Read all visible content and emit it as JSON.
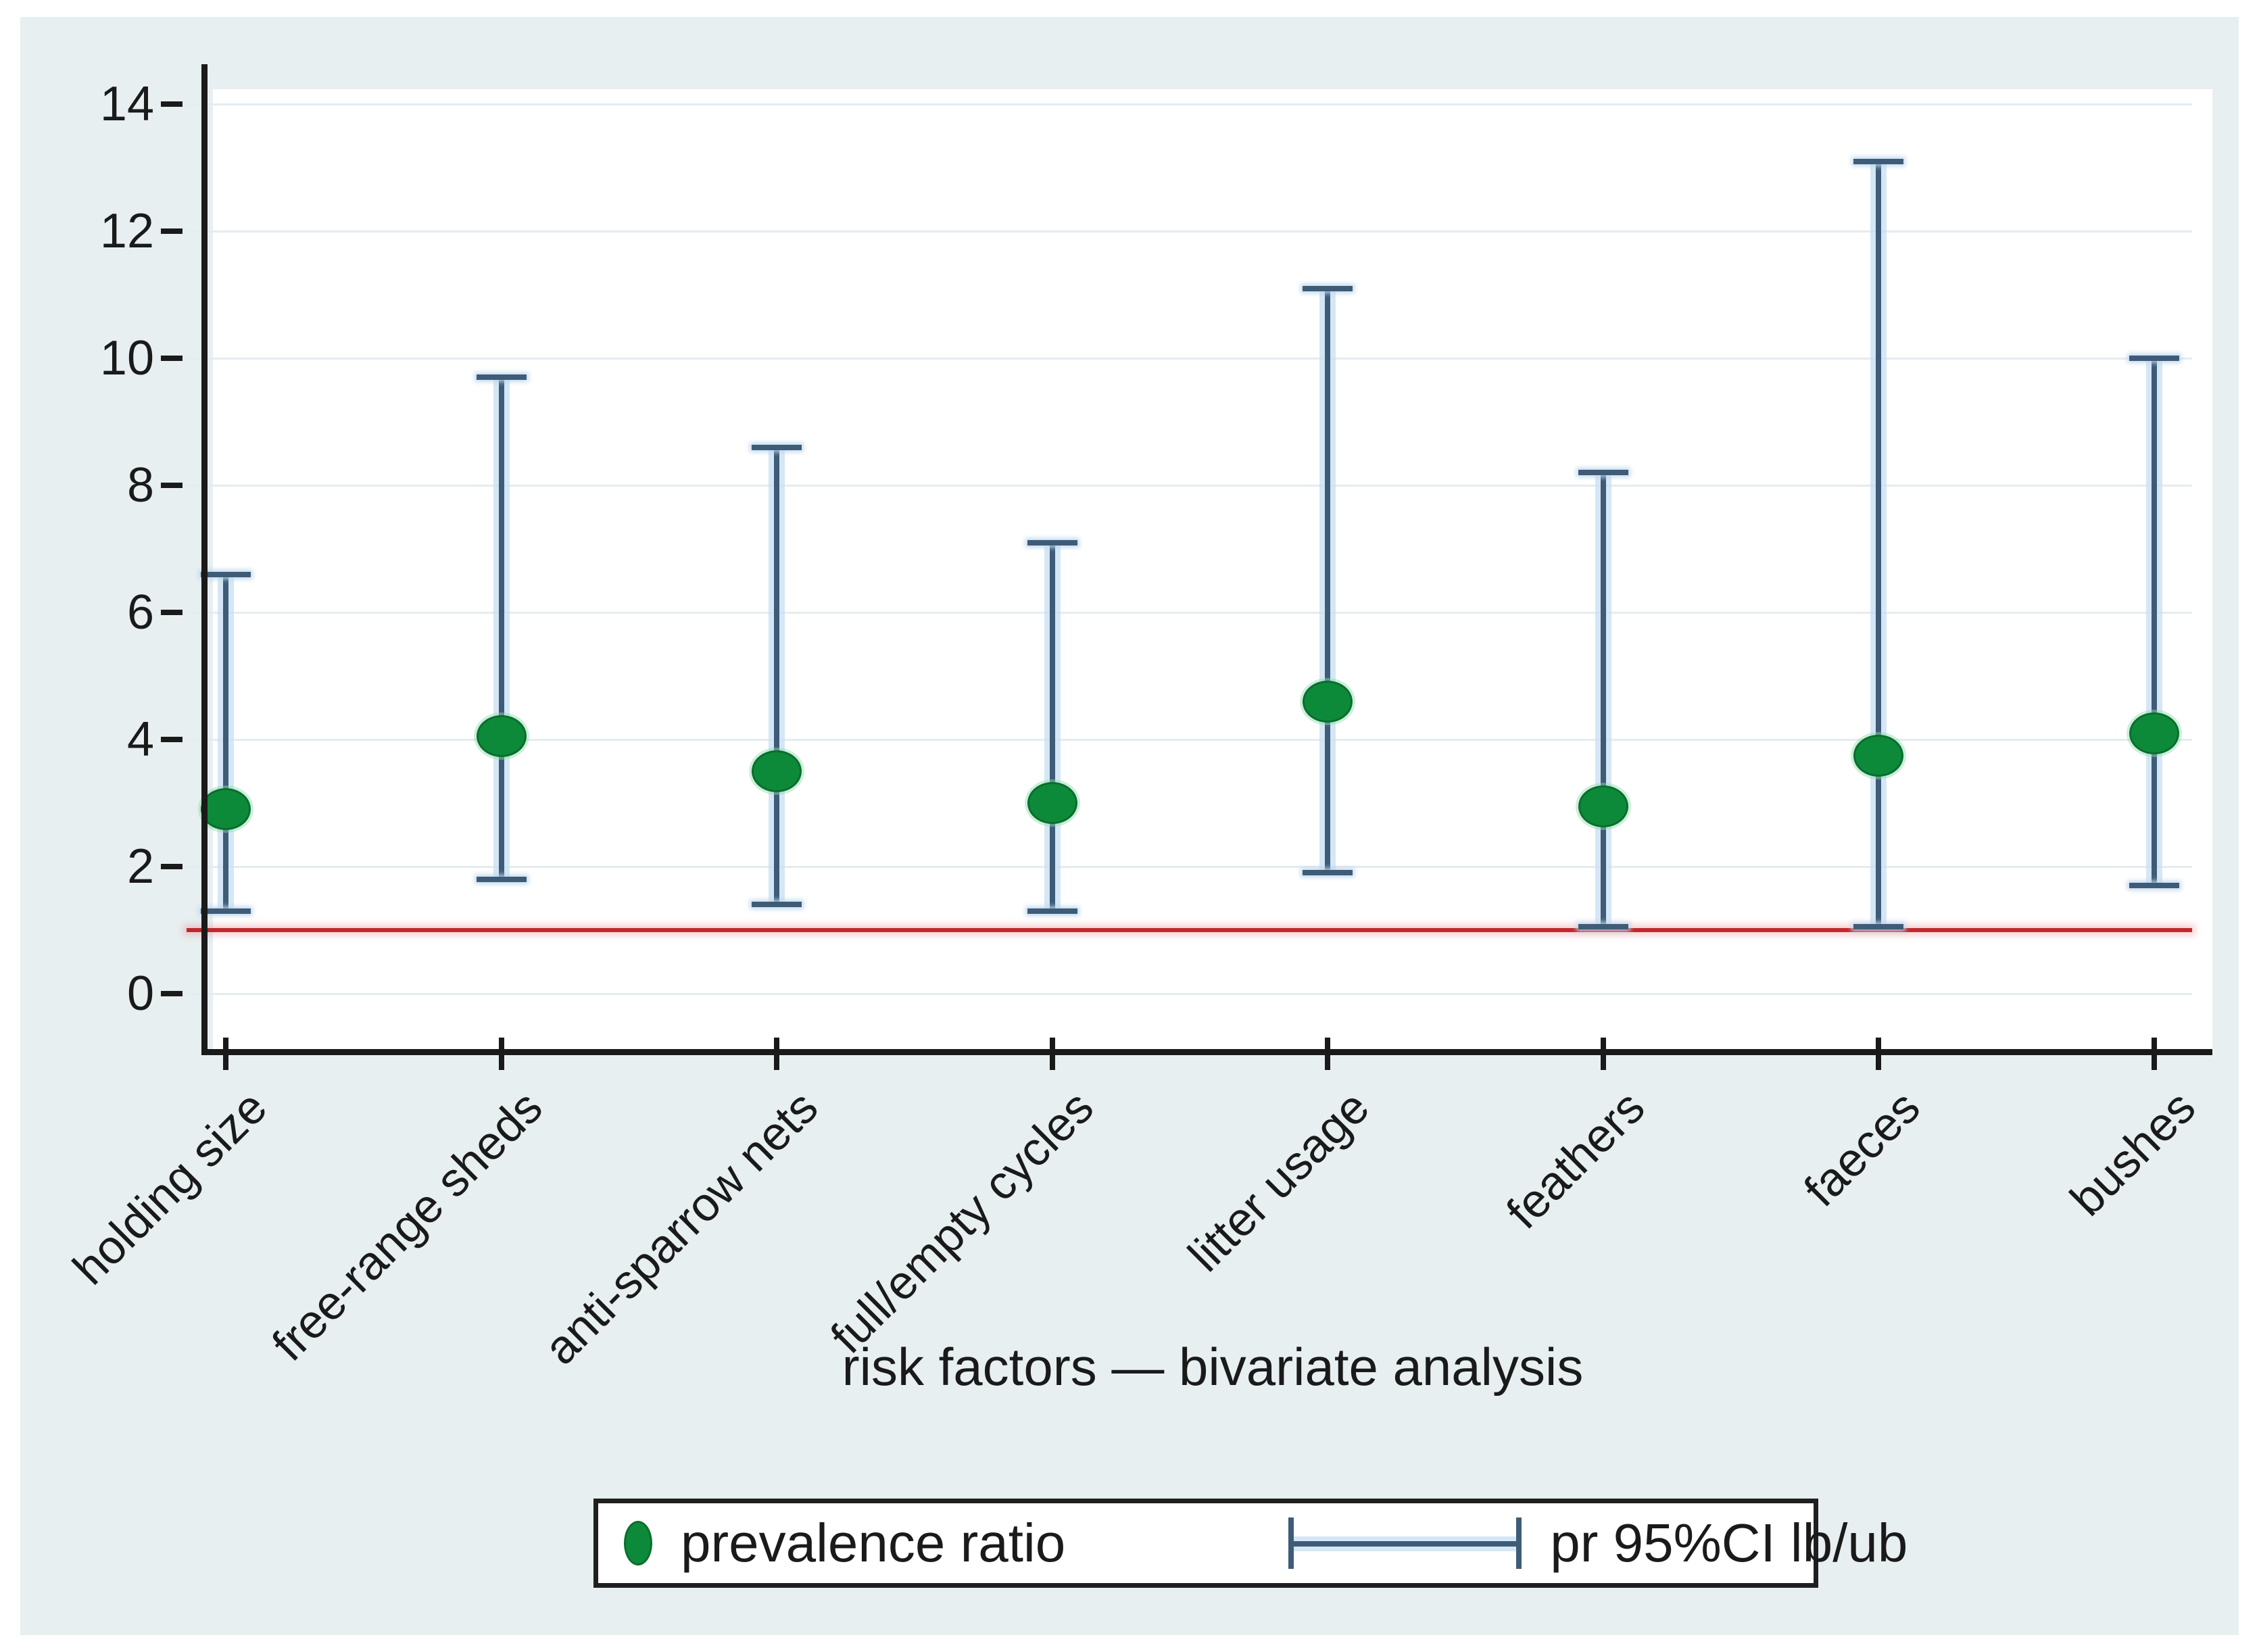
{
  "colors": {
    "panel_bg": "#e7eff1",
    "plot_bg": "#ffffff",
    "grid": "#e4ecf1",
    "axis": "#1a1a1a",
    "marker_green": "#0d8a39",
    "ci_blue": "#3e5c77",
    "ci_halo": "#c7dff3",
    "reference_red": "#c0282d"
  },
  "chart_data": {
    "type": "scatter",
    "subtype": "point-with-errorbars",
    "title": "",
    "xlabel": "risk factors — bivariate analysis",
    "ylabel": "",
    "yticks": [
      0,
      2,
      4,
      6,
      8,
      10,
      12,
      14
    ],
    "ylim": [
      -0.6,
      14.6
    ],
    "grid": "horizontal",
    "reference_line": {
      "y": 1,
      "label": "",
      "color": "#c0282d"
    },
    "categories": [
      "holding size",
      "free-range sheds",
      "anti-sparrow nets",
      "full/empty cycles",
      "litter usage",
      "feathers",
      "faeces",
      "bushes"
    ],
    "series": [
      {
        "name": "prevalence ratio",
        "type": "point",
        "marker": "filled-circle",
        "color": "#0d8a39",
        "values": [
          2.9,
          4.05,
          3.5,
          3.0,
          4.6,
          2.95,
          3.75,
          4.1
        ]
      },
      {
        "name": "pr 95%CI lb/ub",
        "type": "errorbar",
        "color": "#3e5c77",
        "lower": [
          1.3,
          1.8,
          1.4,
          1.3,
          1.9,
          1.05,
          1.05,
          1.7
        ],
        "upper": [
          6.6,
          9.7,
          8.6,
          7.1,
          11.1,
          8.2,
          13.1,
          10.0
        ]
      }
    ],
    "legend": {
      "position": "bottom-center",
      "boxed": true
    }
  }
}
